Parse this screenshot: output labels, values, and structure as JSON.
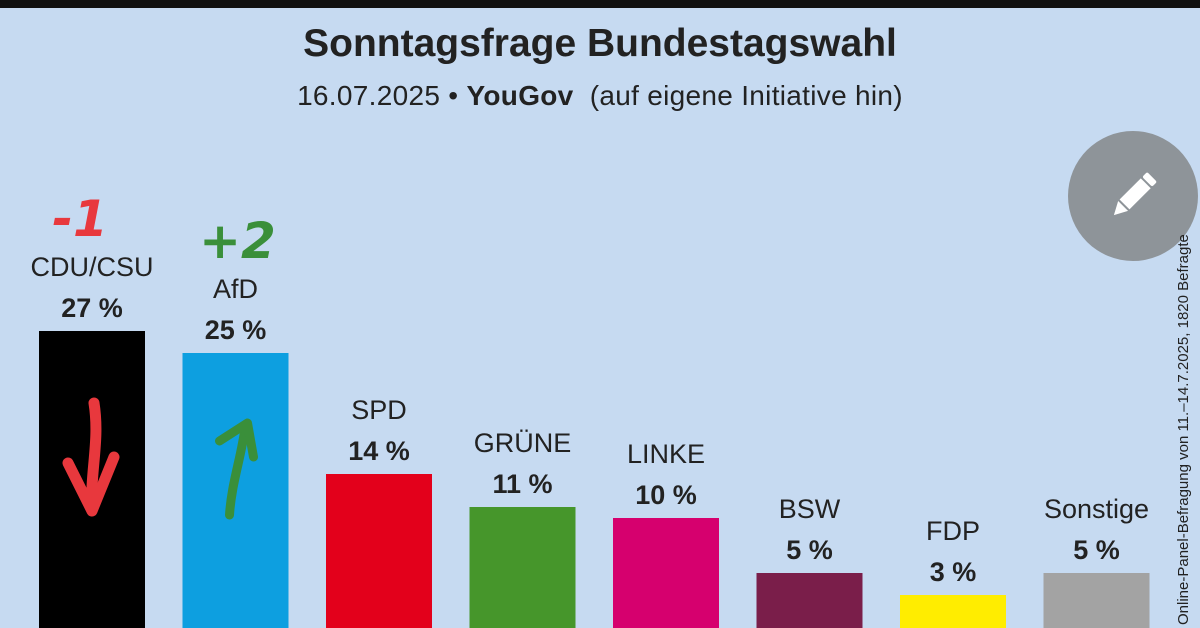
{
  "header": {
    "title": "Sonntagsfrage Bundestagswahl",
    "date": "16.07.2025",
    "separator": "•",
    "source": "YouGov",
    "note": "(auf eigene Initiative hin)"
  },
  "side_note": "Online-Panel-Befragung von 11.–14.7.2025, 1820 Befragte",
  "edit_button": {
    "icon": "pencil-icon",
    "color": "#8e9499"
  },
  "annotations": [
    {
      "party": "CDU/CSU",
      "text": "-1",
      "color": "#e8383d",
      "arrow": "down"
    },
    {
      "party": "AfD",
      "text": "+2",
      "color": "#3a8f3a",
      "arrow": "up"
    }
  ],
  "chart_data": {
    "type": "bar",
    "title": "Sonntagsfrage Bundestagswahl",
    "categories": [
      "CDU/CSU",
      "AfD",
      "SPD",
      "GRÜNE",
      "LINKE",
      "BSW",
      "FDP",
      "Sonstige"
    ],
    "values": [
      27,
      25,
      14,
      11,
      10,
      5,
      3,
      5
    ],
    "value_labels": [
      "27 %",
      "25 %",
      "14 %",
      "11 %",
      "10 %",
      "5 %",
      "3 %",
      "5 %"
    ],
    "colors": [
      "#000000",
      "#0d9fe0",
      "#e3001b",
      "#46962b",
      "#d6006e",
      "#7a1e4a",
      "#ffed00",
      "#a3a3a3"
    ],
    "xlabel": "",
    "ylabel": "",
    "unit": "%",
    "grid": false,
    "legend": "none"
  }
}
